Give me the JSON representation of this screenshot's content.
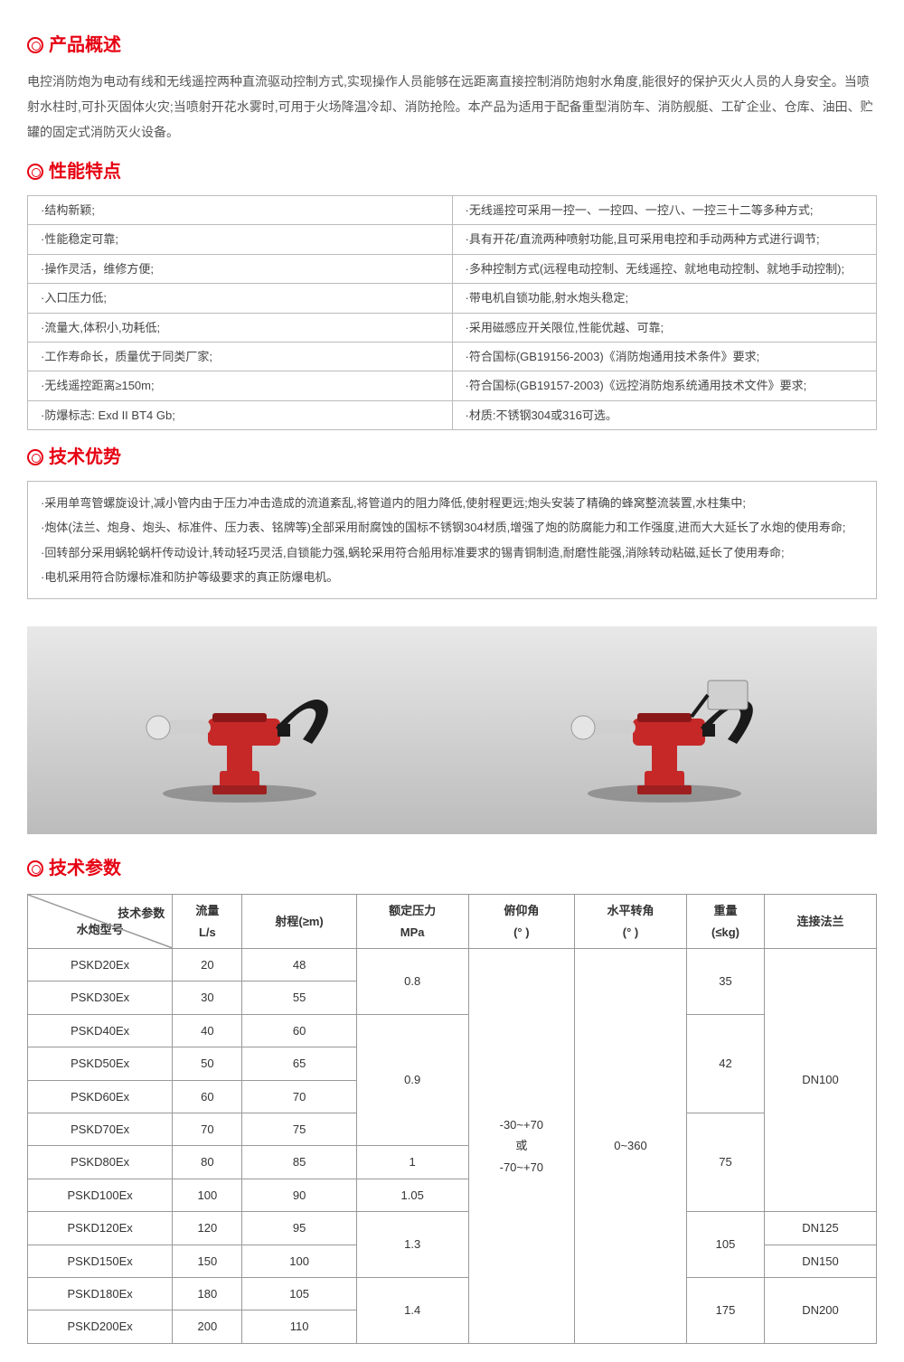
{
  "colors": {
    "accent": "#e60012",
    "border": "#bbbbbb",
    "text": "#333333"
  },
  "overview": {
    "title": "产品概述",
    "text": "电控消防炮为电动有线和无线遥控两种直流驱动控制方式,实现操作人员能够在远距离直接控制消防炮射水角度,能很好的保护灭火人员的人身安全。当喷射水柱时,可扑灭固体火灾;当喷射开花水雾时,可用于火场降温冷却、消防抢险。本产品为适用于配备重型消防车、消防舰艇、工矿企业、仓库、油田、贮罐的固定式消防灭火设备。"
  },
  "features": {
    "title": "性能特点",
    "rows": [
      [
        "·结构新颖;",
        "·无线遥控可采用一控一、一控四、一控八、一控三十二等多种方式;"
      ],
      [
        "·性能稳定可靠;",
        "·具有开花/直流两种喷射功能,且可采用电控和手动两种方式进行调节;"
      ],
      [
        "·操作灵活，维修方便;",
        "·多种控制方式(远程电动控制、无线遥控、就地电动控制、就地手动控制);"
      ],
      [
        "·入口压力低;",
        "·带电机自锁功能,射水炮头稳定;"
      ],
      [
        "·流量大,体积小,功耗低;",
        "·采用磁感应开关限位,性能优越、可靠;"
      ],
      [
        "·工作寿命长，质量优于同类厂家;",
        "·符合国标(GB19156-2003)《消防炮通用技术条件》要求;"
      ],
      [
        "·无线遥控距离≥150m;",
        "·符合国标(GB19157-2003)《远控消防炮系统通用技术文件》要求;"
      ],
      [
        "·防爆标志: Exd II BT4 Gb;",
        "·材质:不锈钢304或316可选。"
      ]
    ]
  },
  "advantages": {
    "title": "技术优势",
    "items": [
      "·采用单弯管螺旋设计,减小管内由于压力冲击造成的流道紊乱,将管道内的阻力降低,使射程更远;炮头安装了精确的蜂窝整流装置,水柱集中;",
      "·炮体(法兰、炮身、炮头、标准件、压力表、铭牌等)全部采用耐腐蚀的国标不锈钢304材质,增强了炮的防腐能力和工作强度,进而大大延长了水炮的使用寿命;",
      "·回转部分采用蜗轮蜗杆传动设计,转动轻巧灵活,自锁能力强,蜗轮采用符合船用标准要求的锡青铜制造,耐磨性能强,消除转动粘磁,延长了使用寿命;",
      "·电机采用符合防爆标准和防护等级要求的真正防爆电机。"
    ]
  },
  "images": {
    "left_alt": "电控消防炮-型号A",
    "right_alt": "电控消防炮-型号B(带控制箱)",
    "body_color": "#c62828",
    "nozzle_color": "#cfcfcf",
    "box_color": "#d0d0d0"
  },
  "specs": {
    "title": "技术参数",
    "header": {
      "diag_top": "技术参数",
      "diag_bottom": "水炮型号",
      "cols": [
        "流量\nL/s",
        "射程(≥m)",
        "额定压力\nMPa",
        "俯仰角\n(°  )",
        "水平转角\n(°  )",
        "重量\n(≤kg)",
        "连接法兰"
      ]
    },
    "pitch": "-30~+70\n或\n-70~+70",
    "horiz": "0~360",
    "rows": [
      {
        "model": "PSKD20Ex",
        "flow": "20",
        "range": "48"
      },
      {
        "model": "PSKD30Ex",
        "flow": "30",
        "range": "55"
      },
      {
        "model": "PSKD40Ex",
        "flow": "40",
        "range": "60"
      },
      {
        "model": "PSKD50Ex",
        "flow": "50",
        "range": "65"
      },
      {
        "model": "PSKD60Ex",
        "flow": "60",
        "range": "70"
      },
      {
        "model": "PSKD70Ex",
        "flow": "70",
        "range": "75"
      },
      {
        "model": "PSKD80Ex",
        "flow": "80",
        "range": "85"
      },
      {
        "model": "PSKD100Ex",
        "flow": "100",
        "range": "90"
      },
      {
        "model": "PSKD120Ex",
        "flow": "120",
        "range": "95"
      },
      {
        "model": "PSKD150Ex",
        "flow": "150",
        "range": "100"
      },
      {
        "model": "PSKD180Ex",
        "flow": "180",
        "range": "105"
      },
      {
        "model": "PSKD200Ex",
        "flow": "200",
        "range": "110"
      }
    ],
    "pressure_groups": [
      {
        "span": 2,
        "val": "0.8"
      },
      {
        "span": 4,
        "val": "0.9"
      },
      {
        "span": 1,
        "val": "1"
      },
      {
        "span": 1,
        "val": "1.05"
      },
      {
        "span": 2,
        "val": "1.3"
      },
      {
        "span": 2,
        "val": "1.4"
      }
    ],
    "weight_groups": [
      {
        "span": 2,
        "val": "35"
      },
      {
        "span": 3,
        "val": "42"
      },
      {
        "span": 3,
        "val": "75"
      },
      {
        "span": 2,
        "val": "105"
      },
      {
        "span": 2,
        "val": "175"
      }
    ],
    "flange_groups": [
      {
        "span": 8,
        "val": "DN100"
      },
      {
        "span": 1,
        "val": "DN125"
      },
      {
        "span": 1,
        "val": "DN150"
      },
      {
        "span": 2,
        "val": "DN200"
      }
    ]
  }
}
